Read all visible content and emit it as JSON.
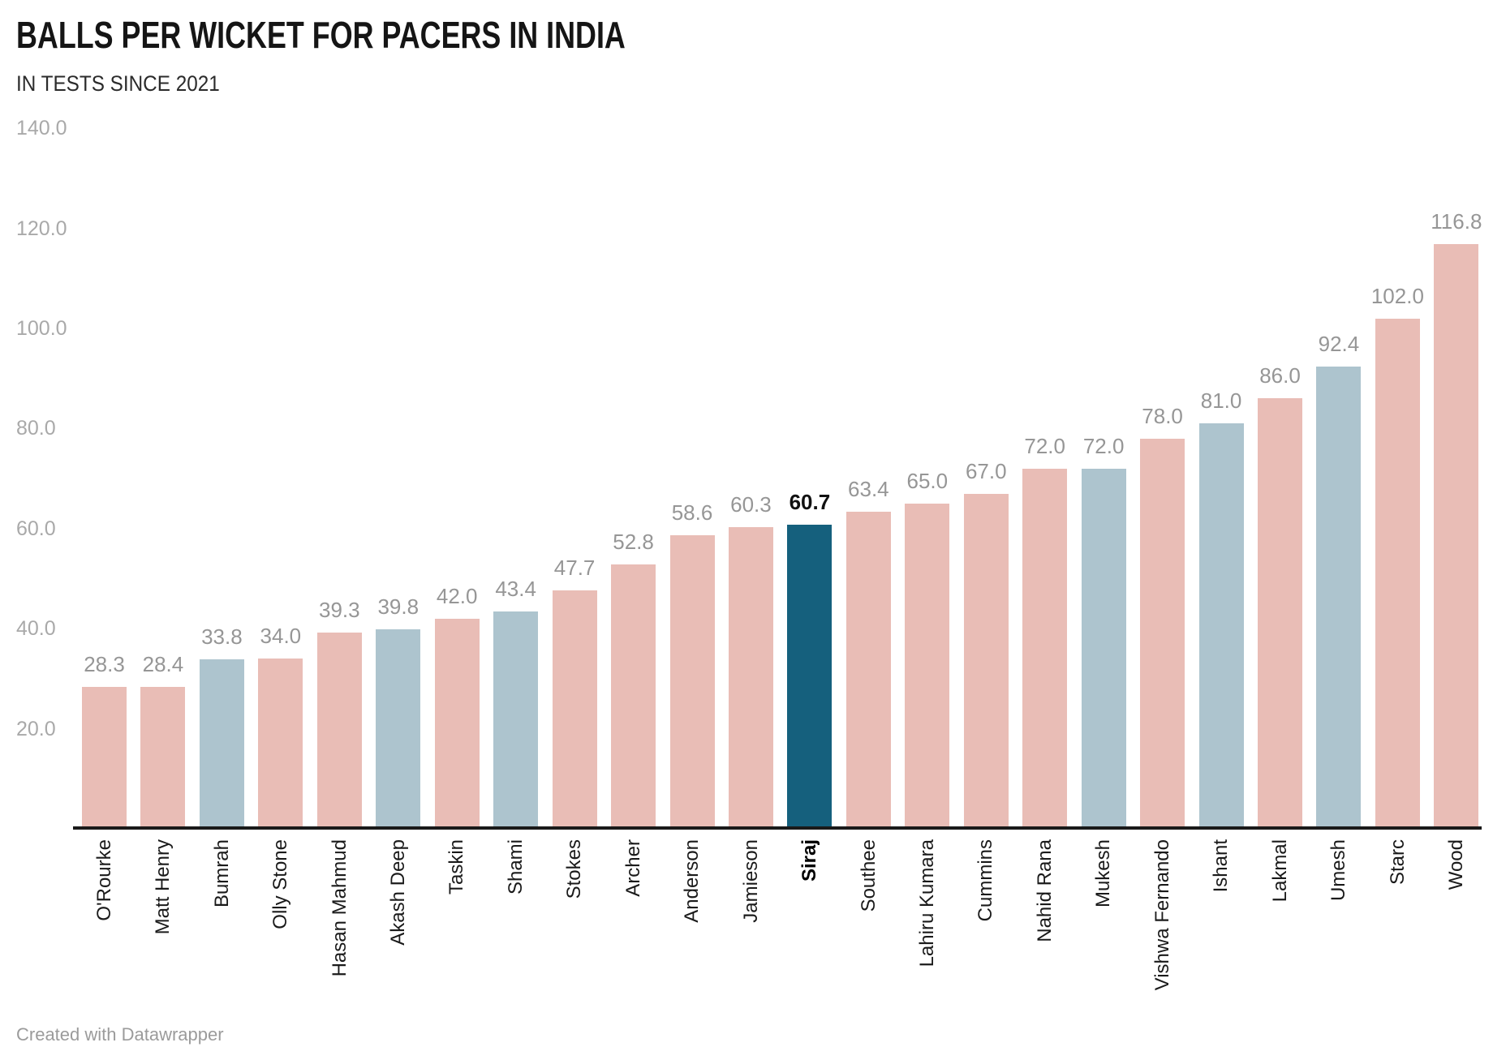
{
  "title": "BALLS PER WICKET FOR PACERS IN INDIA",
  "subtitle": "IN TESTS SINCE 2021",
  "footer_credit": "Created with Datawrapper",
  "colors": {
    "other_bar": "#e9bdb6",
    "india_bar": "#adc4ce",
    "highlight_bar": "#15607d",
    "value_label": "#969696",
    "highlight_value_label": "#111111",
    "axis_tick_label": "#a9a9a9",
    "axis_line": "#1a1a1a",
    "background": "#ffffff"
  },
  "chart_data": {
    "type": "bar",
    "title": "BALLS PER WICKET FOR PACERS IN INDIA",
    "subtitle": "IN TESTS SINCE 2021",
    "xlabel": "",
    "ylabel": "",
    "ylim": [
      0,
      140
    ],
    "y_ticks": [
      20,
      40,
      60,
      80,
      100,
      120,
      140
    ],
    "y_tick_labels": [
      "20.0",
      "40.0",
      "60.0",
      "80.0",
      "100.0",
      "120.0",
      "140.0"
    ],
    "grid": false,
    "legend": "none",
    "highlight_category": "Siraj",
    "bars": [
      {
        "name": "O'Rourke",
        "value": 28.3,
        "label": "28.3",
        "group": "other"
      },
      {
        "name": "Matt Henry",
        "value": 28.4,
        "label": "28.4",
        "group": "other"
      },
      {
        "name": "Bumrah",
        "value": 33.8,
        "label": "33.8",
        "group": "india"
      },
      {
        "name": "Olly Stone",
        "value": 34.0,
        "label": "34.0",
        "group": "other"
      },
      {
        "name": "Hasan Mahmud",
        "value": 39.3,
        "label": "39.3",
        "group": "other"
      },
      {
        "name": "Akash Deep",
        "value": 39.8,
        "label": "39.8",
        "group": "india"
      },
      {
        "name": "Taskin",
        "value": 42.0,
        "label": "42.0",
        "group": "other"
      },
      {
        "name": "Shami",
        "value": 43.4,
        "label": "43.4",
        "group": "india"
      },
      {
        "name": "Stokes",
        "value": 47.7,
        "label": "47.7",
        "group": "other"
      },
      {
        "name": "Archer",
        "value": 52.8,
        "label": "52.8",
        "group": "other"
      },
      {
        "name": "Anderson",
        "value": 58.6,
        "label": "58.6",
        "group": "other"
      },
      {
        "name": "Jamieson",
        "value": 60.3,
        "label": "60.3",
        "group": "other"
      },
      {
        "name": "Siraj",
        "value": 60.7,
        "label": "60.7",
        "group": "highlight"
      },
      {
        "name": "Southee",
        "value": 63.4,
        "label": "63.4",
        "group": "other"
      },
      {
        "name": "Lahiru Kumara",
        "value": 65.0,
        "label": "65.0",
        "group": "other"
      },
      {
        "name": "Cummins",
        "value": 67.0,
        "label": "67.0",
        "group": "other"
      },
      {
        "name": "Nahid Rana",
        "value": 72.0,
        "label": "72.0",
        "group": "other"
      },
      {
        "name": "Mukesh",
        "value": 72.0,
        "label": "72.0",
        "group": "india"
      },
      {
        "name": "Vishwa Fernando",
        "value": 78.0,
        "label": "78.0",
        "group": "other"
      },
      {
        "name": "Ishant",
        "value": 81.0,
        "label": "81.0",
        "group": "india"
      },
      {
        "name": "Lakmal",
        "value": 86.0,
        "label": "86.0",
        "group": "other"
      },
      {
        "name": "Umesh",
        "value": 92.4,
        "label": "92.4",
        "group": "india"
      },
      {
        "name": "Starc",
        "value": 102.0,
        "label": "102.0",
        "group": "other"
      },
      {
        "name": "Wood",
        "value": 116.8,
        "label": "116.8",
        "group": "other"
      }
    ]
  }
}
